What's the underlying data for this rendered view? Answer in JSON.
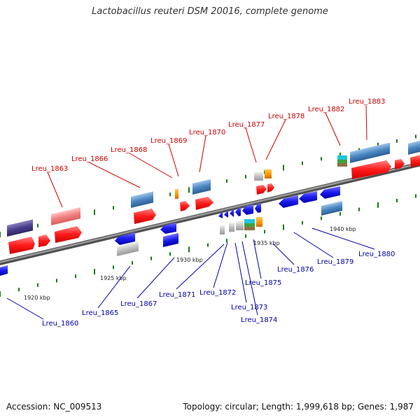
{
  "title": "Lactobacillus reuteri DSM 20016, complete genome",
  "footer": {
    "accession": "Accession: NC_009513",
    "summary": "Topology: circular; Length: 1,999,618 bp; Genes: 1,987"
  },
  "colors": {
    "forward_label": "#cc0000",
    "reverse_label": "#0000aa",
    "forward_gene": "#ff1a1a",
    "reverse_gene": "#1a1aee",
    "cds_steel": "#4a86c0",
    "pseudo_grey": "#c0c0c0",
    "tick_green": "#1a7a1a",
    "axis_grey": "#7a7a7a"
  },
  "kbp_markers": [
    "1920 kbp",
    "1925 kbp",
    "1930 kbp",
    "1935 kbp",
    "1940 kbp"
  ],
  "forward_labels": [
    "Lreu_1863",
    "Lreu_1866",
    "Lreu_1868",
    "Lreu_1869",
    "Lreu_1870",
    "Lreu_1877",
    "Lreu_1878",
    "Lreu_1882",
    "Lreu_1883"
  ],
  "reverse_labels": [
    "Lreu_1860",
    "Lreu_1865",
    "Lreu_1867",
    "Lreu_1871",
    "Lreu_1872",
    "Lreu_1873",
    "Lreu_1874",
    "Lreu_1875",
    "Lreu_1876",
    "Lreu_1879",
    "Lreu_1880"
  ]
}
